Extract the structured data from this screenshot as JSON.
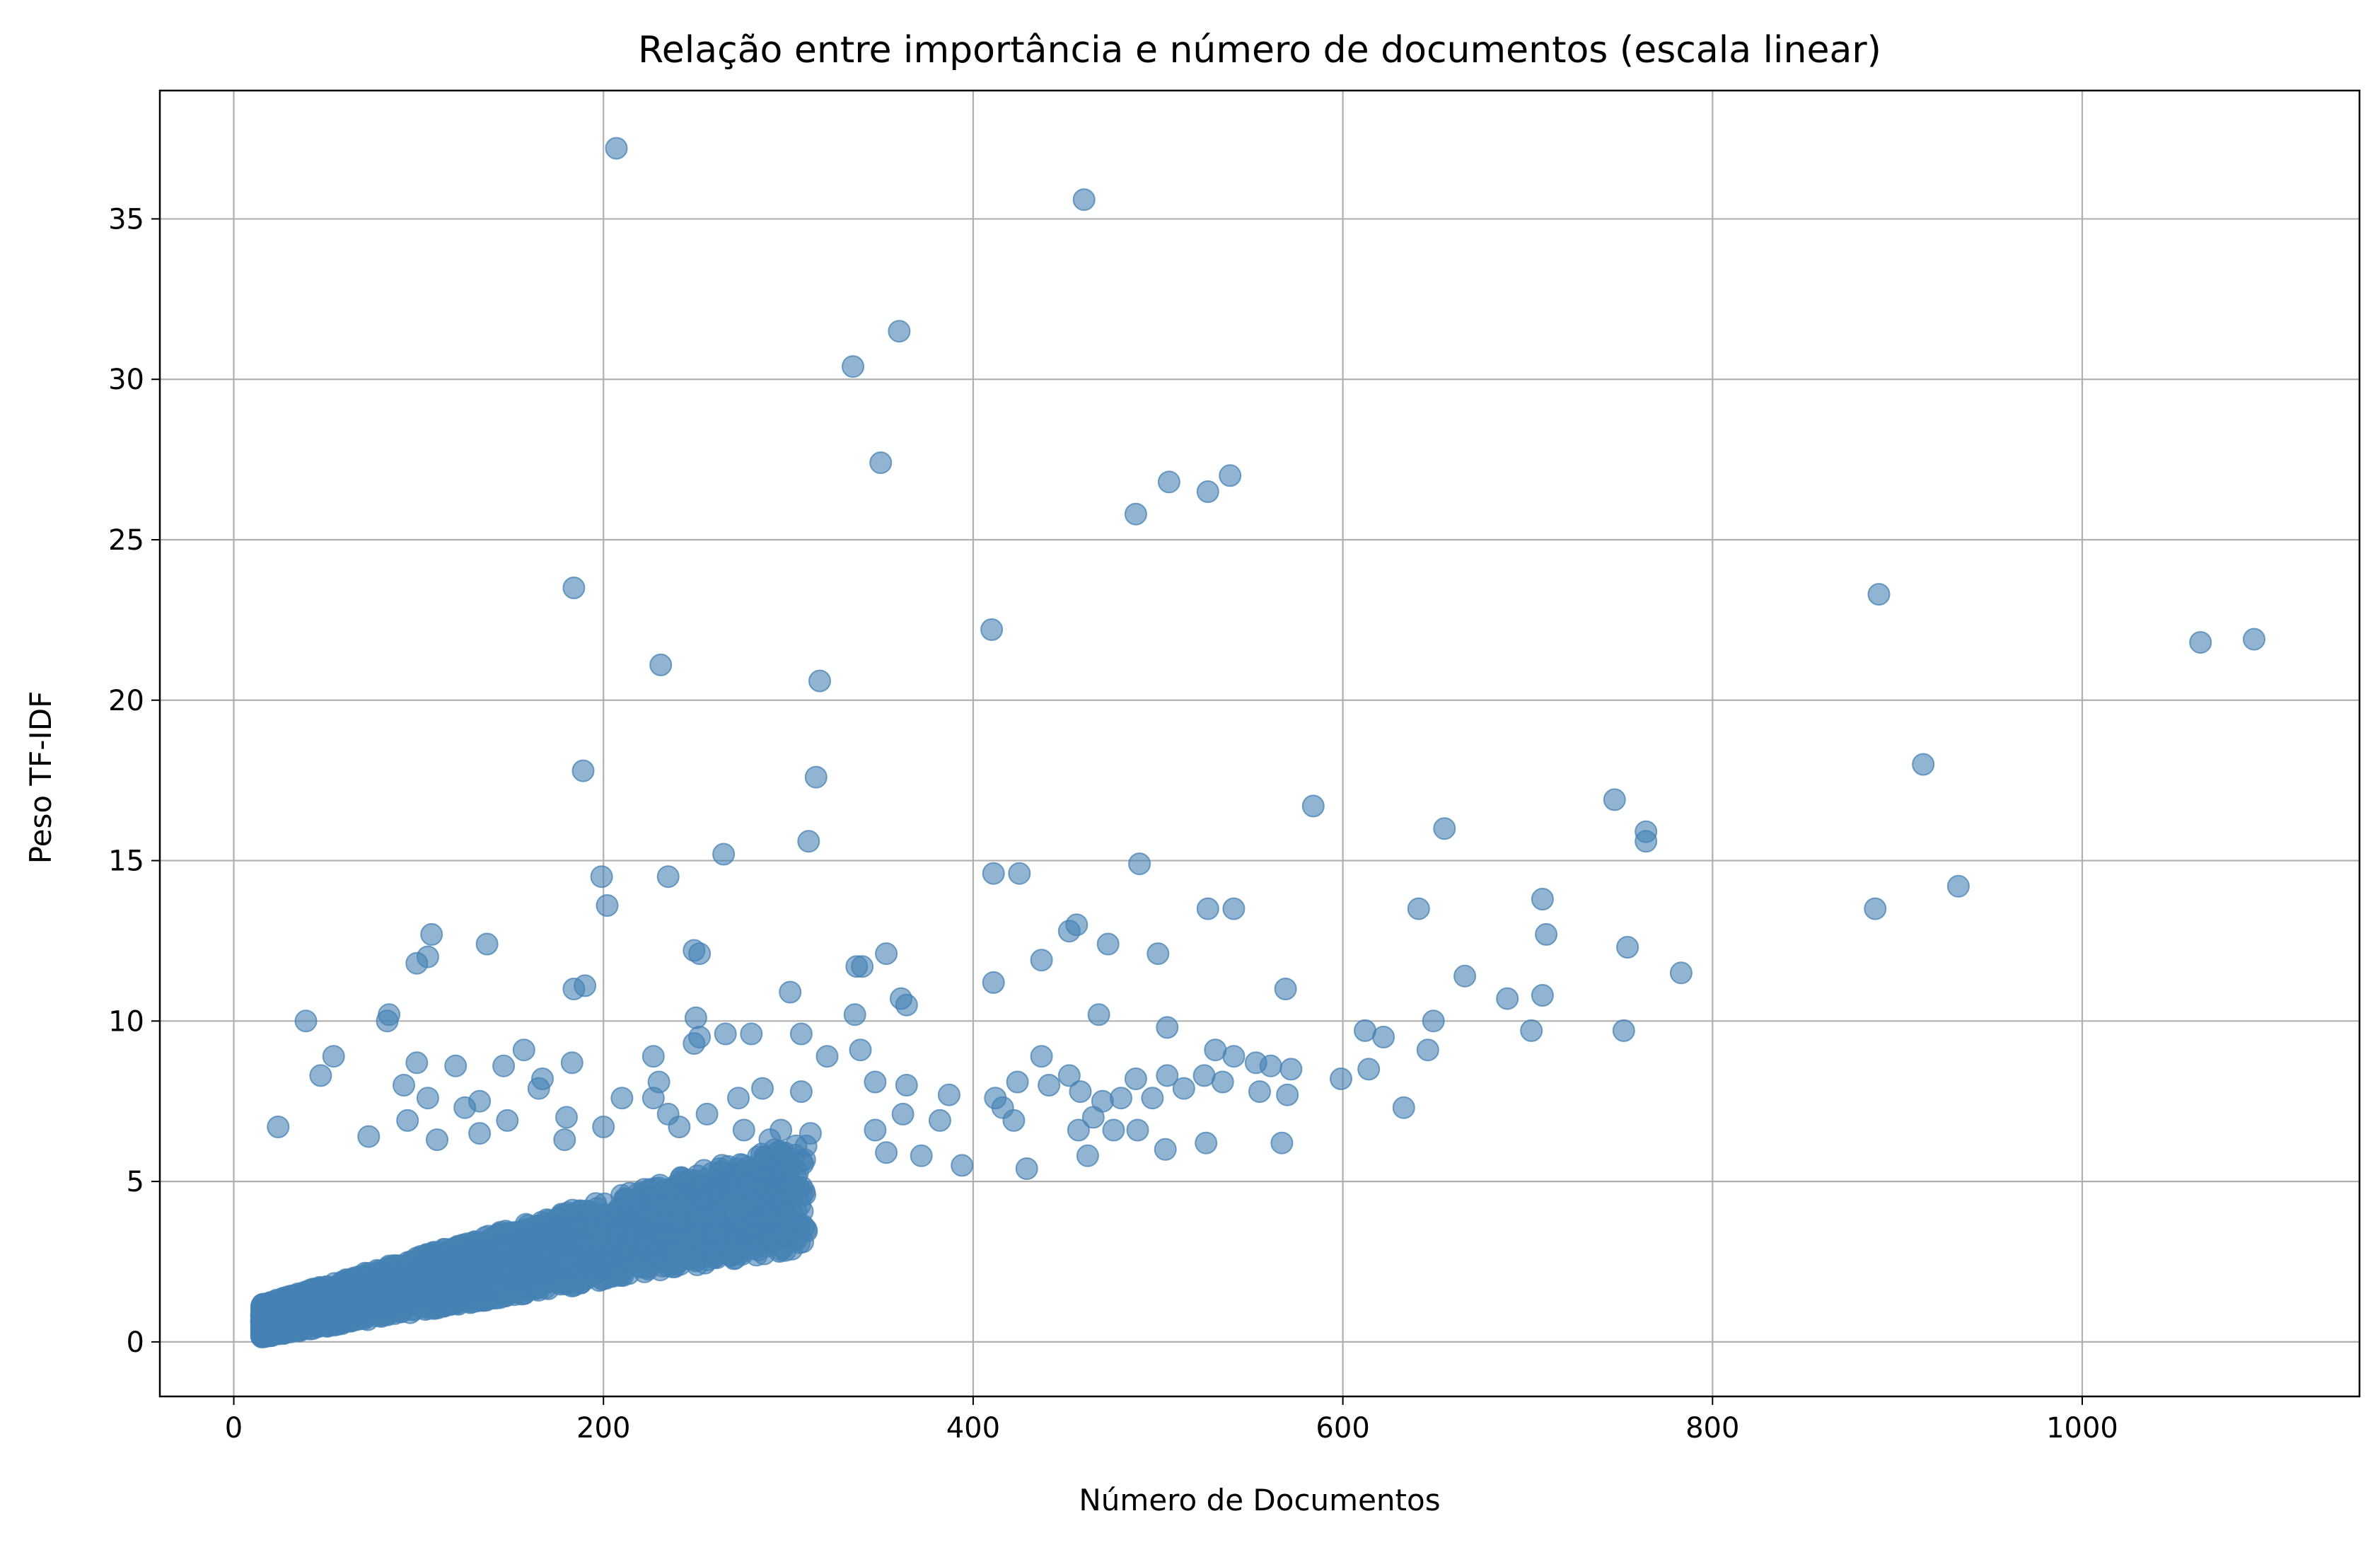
{
  "chart_data": {
    "type": "scatter",
    "title": "Relação entre importância e número de documentos (escala linear)",
    "xlabel": "Número de Documentos",
    "ylabel": "Peso TF-IDF",
    "xlim": [
      -40,
      1150
    ],
    "ylim": [
      -1.7,
      39
    ],
    "xticks": [
      0,
      200,
      400,
      600,
      800,
      1000
    ],
    "yticks": [
      0,
      5,
      10,
      15,
      20,
      25,
      30,
      35
    ],
    "grid": true,
    "color": "#4682b4",
    "dense_cluster": {
      "x_range": [
        15,
        310
      ],
      "lower_slope": 0.0095,
      "upper_slope": 0.0175,
      "upper_offset": 0.9
    },
    "points": [
      [
        207,
        37.2
      ],
      [
        460,
        35.6
      ],
      [
        360,
        31.5
      ],
      [
        335,
        30.4
      ],
      [
        350,
        27.4
      ],
      [
        539,
        27.0
      ],
      [
        506,
        26.8
      ],
      [
        527,
        26.5
      ],
      [
        488,
        25.8
      ],
      [
        184,
        23.5
      ],
      [
        890,
        23.3
      ],
      [
        410,
        22.2
      ],
      [
        1093,
        21.9
      ],
      [
        1064,
        21.8
      ],
      [
        231,
        21.1
      ],
      [
        317,
        20.6
      ],
      [
        914,
        18.0
      ],
      [
        189,
        17.8
      ],
      [
        315,
        17.6
      ],
      [
        747,
        16.9
      ],
      [
        584,
        16.7
      ],
      [
        655,
        16.0
      ],
      [
        764,
        15.9
      ],
      [
        764,
        15.6
      ],
      [
        311,
        15.6
      ],
      [
        265,
        15.2
      ],
      [
        490,
        14.9
      ],
      [
        411,
        14.6
      ],
      [
        425,
        14.6
      ],
      [
        199,
        14.5
      ],
      [
        235,
        14.5
      ],
      [
        933,
        14.2
      ],
      [
        202,
        13.6
      ],
      [
        541,
        13.5
      ],
      [
        527,
        13.5
      ],
      [
        641,
        13.5
      ],
      [
        888,
        13.5
      ],
      [
        708,
        13.8
      ],
      [
        456,
        13.0
      ],
      [
        452,
        12.8
      ],
      [
        710,
        12.7
      ],
      [
        107,
        12.7
      ],
      [
        473,
        12.4
      ],
      [
        137,
        12.4
      ],
      [
        754,
        12.3
      ],
      [
        249,
        12.2
      ],
      [
        252,
        12.1
      ],
      [
        353,
        12.1
      ],
      [
        105,
        12.0
      ],
      [
        500,
        12.1
      ],
      [
        99,
        11.8
      ],
      [
        437,
        11.9
      ],
      [
        340,
        11.7
      ],
      [
        337,
        11.7
      ],
      [
        783,
        11.5
      ],
      [
        666,
        11.4
      ],
      [
        411,
        11.2
      ],
      [
        569,
        11.0
      ],
      [
        190,
        11.1
      ],
      [
        184,
        11.0
      ],
      [
        301,
        10.9
      ],
      [
        708,
        10.8
      ],
      [
        689,
        10.7
      ],
      [
        361,
        10.7
      ],
      [
        364,
        10.5
      ],
      [
        468,
        10.2
      ],
      [
        336,
        10.2
      ],
      [
        84,
        10.2
      ],
      [
        39,
        10.0
      ],
      [
        250,
        10.1
      ],
      [
        649,
        10.0
      ],
      [
        83,
        10.0
      ],
      [
        505,
        9.8
      ],
      [
        612,
        9.7
      ],
      [
        702,
        9.7
      ],
      [
        752,
        9.7
      ],
      [
        266,
        9.6
      ],
      [
        280,
        9.6
      ],
      [
        622,
        9.5
      ],
      [
        252,
        9.5
      ],
      [
        307,
        9.6
      ],
      [
        646,
        9.1
      ],
      [
        531,
        9.1
      ],
      [
        339,
        9.1
      ],
      [
        157,
        9.1
      ],
      [
        249,
        9.3
      ],
      [
        321,
        8.9
      ],
      [
        54,
        8.9
      ],
      [
        541,
        8.9
      ],
      [
        437,
        8.9
      ],
      [
        227,
        8.9
      ],
      [
        183,
        8.7
      ],
      [
        99,
        8.7
      ],
      [
        120,
        8.6
      ],
      [
        146,
        8.6
      ],
      [
        553,
        8.7
      ],
      [
        561,
        8.6
      ],
      [
        572,
        8.5
      ],
      [
        614,
        8.5
      ],
      [
        452,
        8.3
      ],
      [
        505,
        8.3
      ],
      [
        525,
        8.3
      ],
      [
        599,
        8.2
      ],
      [
        47,
        8.3
      ],
      [
        488,
        8.2
      ],
      [
        424,
        8.1
      ],
      [
        535,
        8.1
      ],
      [
        347,
        8.1
      ],
      [
        230,
        8.1
      ],
      [
        167,
        8.2
      ],
      [
        92,
        8.0
      ],
      [
        364,
        8.0
      ],
      [
        441,
        8.0
      ],
      [
        165,
        7.9
      ],
      [
        286,
        7.9
      ],
      [
        514,
        7.9
      ],
      [
        458,
        7.8
      ],
      [
        307,
        7.8
      ],
      [
        555,
        7.8
      ],
      [
        570,
        7.7
      ],
      [
        387,
        7.7
      ],
      [
        412,
        7.6
      ],
      [
        273,
        7.6
      ],
      [
        210,
        7.6
      ],
      [
        105,
        7.6
      ],
      [
        133,
        7.5
      ],
      [
        470,
        7.5
      ],
      [
        480,
        7.6
      ],
      [
        497,
        7.6
      ],
      [
        227,
        7.6
      ],
      [
        416,
        7.3
      ],
      [
        633,
        7.3
      ],
      [
        125,
        7.3
      ],
      [
        235,
        7.1
      ],
      [
        180,
        7.0
      ],
      [
        362,
        7.1
      ],
      [
        465,
        7.0
      ],
      [
        256,
        7.1
      ],
      [
        94,
        6.9
      ],
      [
        148,
        6.9
      ],
      [
        382,
        6.9
      ],
      [
        422,
        6.9
      ],
      [
        200,
        6.7
      ],
      [
        276,
        6.6
      ],
      [
        296,
        6.6
      ],
      [
        24,
        6.7
      ],
      [
        241,
        6.7
      ],
      [
        476,
        6.6
      ],
      [
        347,
        6.6
      ],
      [
        133,
        6.5
      ],
      [
        73,
        6.4
      ],
      [
        179,
        6.3
      ],
      [
        110,
        6.3
      ],
      [
        290,
        6.3
      ],
      [
        312,
        6.5
      ],
      [
        457,
        6.6
      ],
      [
        489,
        6.6
      ],
      [
        567,
        6.2
      ],
      [
        526,
        6.2
      ],
      [
        504,
        6.0
      ],
      [
        462,
        5.8
      ],
      [
        429,
        5.4
      ],
      [
        394,
        5.5
      ],
      [
        372,
        5.8
      ],
      [
        353,
        5.9
      ]
    ]
  }
}
